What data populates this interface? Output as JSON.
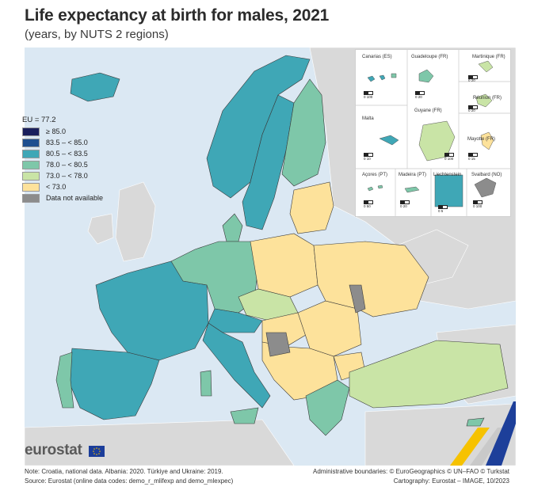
{
  "title": "Life expectancy at birth for males, 2021",
  "subtitle": "(years, by NUTS 2 regions)",
  "legend": {
    "title": "EU = 77.2",
    "items": [
      {
        "label": "≥ 85.0",
        "color": "#1a1f5c"
      },
      {
        "label": "83.5 – < 85.0",
        "color": "#1f4f8f"
      },
      {
        "label": "80.5 – < 83.5",
        "color": "#3fa7b6"
      },
      {
        "label": "78.0 – < 80.5",
        "color": "#7ec7a9"
      },
      {
        "label": "73.0 – < 78.0",
        "color": "#c9e4a6"
      },
      {
        "label": "< 73.0",
        "color": "#fde29b"
      },
      {
        "label": "Data not available",
        "color": "#8c8c8c"
      }
    ]
  },
  "insets": [
    {
      "name": "Canarias (ES)",
      "scale": "0   100"
    },
    {
      "name": "Guadeloupe (FR)",
      "scale": "0   20"
    },
    {
      "name": "Martinique (FR)",
      "scale": "0   20"
    },
    {
      "name": "Malta",
      "scale": "0   10"
    },
    {
      "name": "Guyane (FR)",
      "scale": "0   100"
    },
    {
      "name": "Réunion (FR)",
      "scale": "0   20"
    },
    {
      "name": "Mayotte (FR)",
      "scale": "0   15"
    },
    {
      "name": "Açores (PT)",
      "scale": "0   50"
    },
    {
      "name": "Madeira (PT)",
      "scale": "0   20"
    },
    {
      "name": "Liechtenstein",
      "scale": "0   5"
    },
    {
      "name": "Svalbard (NO)",
      "scale": "0   100"
    }
  ],
  "logo": "eurostat",
  "footer": {
    "note": "Note: Croatia, national data. Albania: 2020. Türkiye and Ukraine: 2019.",
    "source": "Source: Eurostat (online data codes: demo_r_mlifexp and demo_mlexpec)",
    "boundaries": "Administrative boundaries: © EuroGeographics © UN–FAO © Turkstat",
    "cartography": "Cartography: Eurostat – IMAGE, 10/2023"
  },
  "colors": {
    "sea": "#dbe8f3",
    "non_eu": "#d9d9d9",
    "border": "#3a3a3a"
  }
}
